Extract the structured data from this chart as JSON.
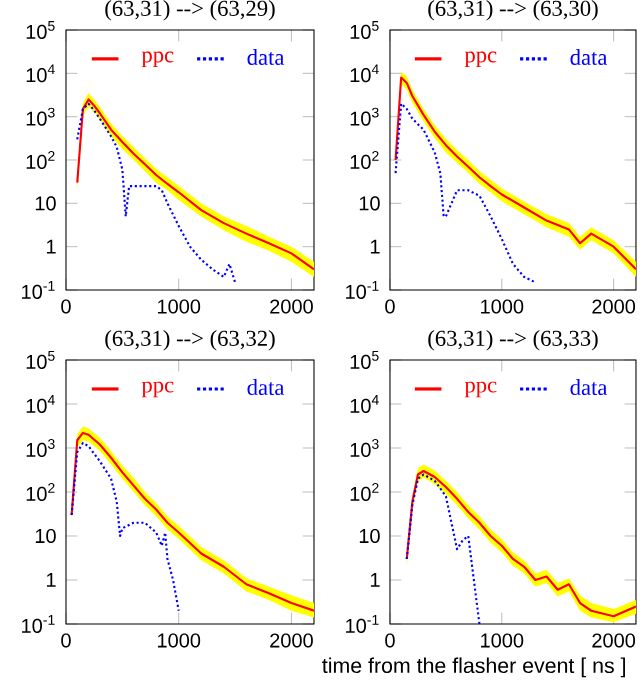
{
  "chart_data": [
    {
      "type": "line",
      "title": "(63,31) --> (63,29)",
      "xlim": [
        0,
        2200
      ],
      "ylim": [
        0.1,
        100000
      ],
      "log": "y",
      "legend": "top",
      "xticks": [
        0,
        1000,
        2000
      ],
      "yticks": [
        {
          "value": 0.1,
          "label": "10$^{-1}$"
        },
        {
          "value": 1,
          "label": "1"
        },
        {
          "value": 10,
          "label": "10"
        },
        {
          "value": 100,
          "label": "10$^{2}$"
        },
        {
          "value": 1000,
          "label": "10$^{3}$"
        },
        {
          "value": 10000,
          "label": "10$^{4}$"
        },
        {
          "value": 100000,
          "label": "10$^{5}$"
        }
      ],
      "series": [
        {
          "name": "ppc",
          "color": "#ff0000",
          "line_style": "solid",
          "x": [
            100,
            150,
            200,
            250,
            300,
            400,
            500,
            600,
            700,
            800,
            900,
            1000,
            1200,
            1400,
            1600,
            1800,
            2000,
            2200
          ],
          "values": [
            30,
            1500,
            2500,
            1800,
            1200,
            500,
            260,
            140,
            80,
            45,
            28,
            18,
            7,
            3.5,
            2,
            1.2,
            0.7,
            0.3
          ],
          "upper": [
            45,
            2100,
            3500,
            2500,
            1700,
            700,
            360,
            200,
            110,
            63,
            40,
            25,
            10,
            5,
            3,
            1.7,
            1,
            0.45
          ],
          "lower": [
            20,
            1000,
            1700,
            1250,
            850,
            350,
            180,
            100,
            55,
            30,
            20,
            12,
            5,
            2.4,
            1.3,
            0.8,
            0.45,
            0.2
          ]
        },
        {
          "name": "data",
          "color": "#0000ff",
          "line_style": "dotted",
          "x": [
            100,
            150,
            200,
            250,
            300,
            400,
            450,
            500,
            530,
            560,
            700,
            800,
            850,
            900,
            1000,
            1100,
            1200,
            1300,
            1400,
            1450,
            1500
          ],
          "values": [
            300,
            1500,
            2000,
            1400,
            900,
            350,
            200,
            60,
            5,
            25,
            25,
            25,
            20,
            10,
            3,
            1,
            0.5,
            0.3,
            0.2,
            0.4,
            0.15
          ]
        }
      ]
    },
    {
      "type": "line",
      "title": "(63,31) --> (63,30)",
      "xlim": [
        0,
        2200
      ],
      "ylim": [
        0.1,
        100000
      ],
      "log": "y",
      "legend": "top",
      "xticks": [
        0,
        1000,
        2000
      ],
      "yticks": [
        {
          "value": 0.1,
          "label": "10$^{-1}$"
        },
        {
          "value": 1,
          "label": "1"
        },
        {
          "value": 10,
          "label": "10"
        },
        {
          "value": 100,
          "label": "10$^{2}$"
        },
        {
          "value": 1000,
          "label": "10$^{3}$"
        },
        {
          "value": 10000,
          "label": "10$^{4}$"
        },
        {
          "value": 100000,
          "label": "10$^{5}$"
        }
      ],
      "series": [
        {
          "name": "ppc",
          "color": "#ff0000",
          "line_style": "solid",
          "x": [
            50,
            100,
            150,
            200,
            300,
            400,
            500,
            600,
            700,
            800,
            900,
            1000,
            1200,
            1400,
            1600,
            1700,
            1800,
            2000,
            2200
          ],
          "values": [
            100,
            8000,
            6000,
            3000,
            1100,
            450,
            220,
            120,
            70,
            40,
            25,
            16,
            8,
            4,
            2.5,
            1.2,
            2,
            1,
            0.3
          ],
          "upper": [
            150,
            11000,
            8500,
            4200,
            1500,
            630,
            310,
            170,
            100,
            56,
            35,
            22,
            11,
            5.6,
            3.5,
            1.7,
            2.8,
            1.4,
            0.45
          ],
          "lower": [
            70,
            5600,
            4200,
            2100,
            770,
            320,
            150,
            85,
            50,
            28,
            18,
            11,
            5.6,
            2.8,
            1.7,
            0.85,
            1.4,
            0.7,
            0.2
          ]
        },
        {
          "name": "data",
          "color": "#0000ff",
          "line_style": "dotted",
          "x": [
            50,
            100,
            150,
            200,
            300,
            400,
            450,
            480,
            500,
            600,
            700,
            800,
            900,
            1000,
            1100,
            1200,
            1300
          ],
          "values": [
            50,
            2000,
            1500,
            900,
            500,
            150,
            50,
            5,
            5,
            20,
            20,
            15,
            5,
            1.5,
            0.4,
            0.2,
            0.15
          ]
        }
      ]
    },
    {
      "type": "line",
      "title": "(63,31) --> (63,32)",
      "xlim": [
        0,
        2200
      ],
      "ylim": [
        0.1,
        100000
      ],
      "log": "y",
      "legend": "top",
      "xticks": [
        0,
        1000,
        2000
      ],
      "yticks": [
        {
          "value": 0.1,
          "label": "10$^{-1}$"
        },
        {
          "value": 1,
          "label": "1"
        },
        {
          "value": 10,
          "label": "10"
        },
        {
          "value": 100,
          "label": "10$^{2}$"
        },
        {
          "value": 1000,
          "label": "10$^{3}$"
        },
        {
          "value": 10000,
          "label": "10$^{4}$"
        },
        {
          "value": 100000,
          "label": "10$^{5}$"
        }
      ],
      "series": [
        {
          "name": "ppc",
          "color": "#ff0000",
          "line_style": "solid",
          "x": [
            50,
            100,
            150,
            200,
            300,
            400,
            500,
            600,
            700,
            800,
            900,
            1000,
            1200,
            1400,
            1600,
            1800,
            2000,
            2200
          ],
          "values": [
            30,
            1500,
            2200,
            2000,
            1200,
            600,
            280,
            140,
            70,
            40,
            20,
            12,
            4,
            2,
            0.8,
            0.5,
            0.3,
            0.2
          ],
          "upper": [
            45,
            2100,
            3100,
            2800,
            1700,
            850,
            400,
            210,
            100,
            56,
            28,
            17,
            5.6,
            2.8,
            1.1,
            0.7,
            0.45,
            0.3
          ],
          "lower": [
            20,
            1000,
            1500,
            1400,
            850,
            420,
            200,
            100,
            50,
            28,
            14,
            8.5,
            2.8,
            1.4,
            0.55,
            0.35,
            0.2,
            0.14
          ]
        },
        {
          "name": "data",
          "color": "#0000ff",
          "line_style": "dotted",
          "x": [
            50,
            100,
            150,
            200,
            300,
            400,
            450,
            480,
            500,
            600,
            700,
            800,
            850,
            880,
            900,
            950,
            1000
          ],
          "values": [
            30,
            800,
            1300,
            1100,
            500,
            200,
            60,
            10,
            15,
            20,
            20,
            12,
            6,
            12,
            3,
            1,
            0.2
          ]
        }
      ]
    },
    {
      "type": "line",
      "title": "(63,31) --> (63,33)",
      "xlabel": "time from the flasher event [ ns ]",
      "xlim": [
        0,
        2200
      ],
      "ylim": [
        0.1,
        100000
      ],
      "log": "y",
      "legend": "top",
      "xticks": [
        0,
        1000,
        2000
      ],
      "yticks": [
        {
          "value": 0.1,
          "label": "10$^{-1}$"
        },
        {
          "value": 1,
          "label": "1"
        },
        {
          "value": 10,
          "label": "10"
        },
        {
          "value": 100,
          "label": "10$^{2}$"
        },
        {
          "value": 1000,
          "label": "10$^{3}$"
        },
        {
          "value": 10000,
          "label": "10$^{4}$"
        },
        {
          "value": 100000,
          "label": "10$^{5}$"
        }
      ],
      "series": [
        {
          "name": "ppc",
          "color": "#ff0000",
          "line_style": "solid",
          "x": [
            150,
            200,
            250,
            300,
            400,
            500,
            600,
            700,
            800,
            900,
            1000,
            1100,
            1200,
            1300,
            1400,
            1500,
            1600,
            1700,
            1800,
            2000,
            2200
          ],
          "values": [
            3,
            60,
            250,
            300,
            220,
            130,
            70,
            35,
            20,
            10,
            6,
            3,
            2,
            1,
            1.2,
            0.6,
            0.8,
            0.3,
            0.2,
            0.15,
            0.25
          ],
          "upper": [
            4.5,
            85,
            350,
            420,
            310,
            180,
            100,
            50,
            28,
            14,
            8.5,
            4.2,
            2.8,
            1.4,
            1.7,
            0.85,
            1.1,
            0.45,
            0.3,
            0.22,
            0.35
          ],
          "lower": [
            2,
            40,
            170,
            210,
            150,
            90,
            50,
            25,
            14,
            7,
            4.2,
            2.1,
            1.4,
            0.7,
            0.85,
            0.42,
            0.55,
            0.2,
            0.14,
            0.11,
            0.17
          ]
        },
        {
          "name": "data",
          "color": "#0000ff",
          "line_style": "dotted",
          "x": [
            150,
            200,
            250,
            300,
            400,
            500,
            550,
            600,
            650,
            700,
            750,
            800
          ],
          "values": [
            3,
            50,
            200,
            250,
            180,
            80,
            20,
            5,
            8,
            10,
            1,
            0.1
          ]
        }
      ]
    }
  ]
}
